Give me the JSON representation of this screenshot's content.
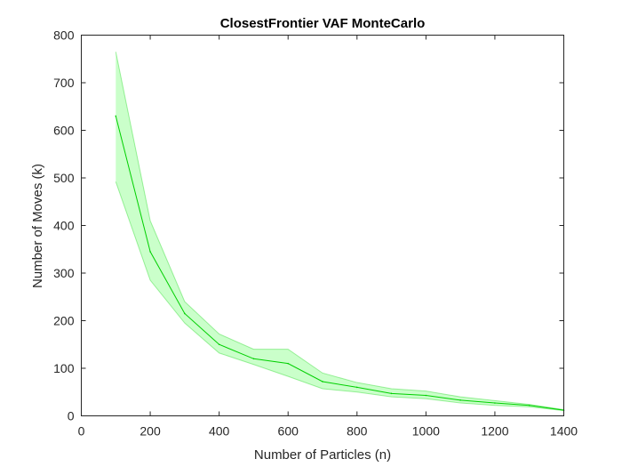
{
  "chart_data": {
    "type": "line",
    "title": "ClosestFrontier VAF MonteCarlo",
    "xlabel": "Number of Particles (n)",
    "ylabel": "Number of Moves (k)",
    "xlim": [
      0,
      1400
    ],
    "ylim": [
      0,
      800
    ],
    "xticks": [
      0,
      200,
      400,
      600,
      800,
      1000,
      1200,
      1400
    ],
    "yticks": [
      0,
      100,
      200,
      300,
      400,
      500,
      600,
      700,
      800
    ],
    "grid": false,
    "legend": "none",
    "x": [
      100,
      200,
      300,
      400,
      500,
      600,
      700,
      800,
      900,
      1000,
      1100,
      1200,
      1300,
      1400
    ],
    "series": [
      {
        "values": [
          630,
          345,
          215,
          150,
          120,
          110,
          72,
          60,
          47,
          43,
          33,
          27,
          22,
          12
        ],
        "upper": [
          765,
          410,
          240,
          172,
          140,
          140,
          90,
          70,
          57,
          52,
          40,
          32,
          24,
          13
        ],
        "lower": [
          492,
          285,
          195,
          132,
          108,
          83,
          57,
          50,
          40,
          36,
          27,
          22,
          19,
          11
        ],
        "color": "#00d000",
        "band_color": "#b3ffb3"
      }
    ]
  }
}
